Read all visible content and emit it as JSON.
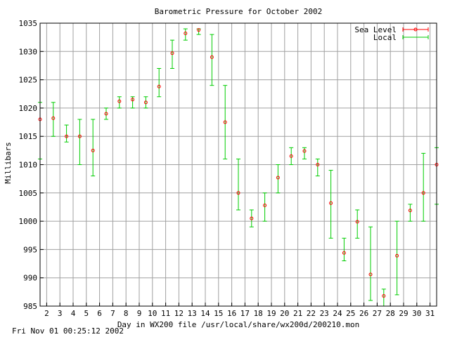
{
  "timestamp": "Fri Nov 01 00:25:12 2002",
  "chart_data": {
    "type": "error-bar",
    "title": "Barometric Pressure for October 2002",
    "xlabel": "Day in WX200 file /usr/local/share/wx200d/200210.mon",
    "ylabel": "Millibars",
    "xlim": [
      1.5,
      31.5
    ],
    "ylim": [
      985,
      1035
    ],
    "x_ticks": [
      2,
      3,
      4,
      5,
      6,
      7,
      8,
      9,
      10,
      11,
      12,
      13,
      14,
      15,
      16,
      17,
      18,
      19,
      20,
      21,
      22,
      23,
      24,
      25,
      26,
      27,
      28,
      29,
      30,
      31
    ],
    "y_ticks": [
      985,
      990,
      995,
      1000,
      1005,
      1010,
      1015,
      1020,
      1025,
      1030,
      1035
    ],
    "grid": true,
    "legend_position": "top-right",
    "colors": {
      "sea_level": "#ff0000",
      "local": "#00cc00",
      "grid": "#a0a0a0"
    },
    "series": [
      {
        "name": "Sea Level",
        "points": [
          {
            "x": 1.5,
            "y": 1018
          },
          {
            "x": 2.5,
            "y": 1018.2
          },
          {
            "x": 3.5,
            "y": 1015
          },
          {
            "x": 4.5,
            "y": 1015
          },
          {
            "x": 5.5,
            "y": 1012.5
          },
          {
            "x": 6.5,
            "y": 1019
          },
          {
            "x": 7.5,
            "y": 1021.2
          },
          {
            "x": 8.5,
            "y": 1021.5
          },
          {
            "x": 9.5,
            "y": 1021
          },
          {
            "x": 10.5,
            "y": 1023.8
          },
          {
            "x": 11.5,
            "y": 1029.7
          },
          {
            "x": 12.5,
            "y": 1033.2
          },
          {
            "x": 13.5,
            "y": 1033.8
          },
          {
            "x": 14.5,
            "y": 1029
          },
          {
            "x": 15.5,
            "y": 1017.5
          },
          {
            "x": 16.5,
            "y": 1005
          },
          {
            "x": 17.5,
            "y": 1000.5
          },
          {
            "x": 18.5,
            "y": 1002.8
          },
          {
            "x": 19.5,
            "y": 1007.7
          },
          {
            "x": 20.5,
            "y": 1011.5
          },
          {
            "x": 21.5,
            "y": 1012.4
          },
          {
            "x": 22.5,
            "y": 1010
          },
          {
            "x": 23.5,
            "y": 1003.2
          },
          {
            "x": 24.5,
            "y": 994.4
          },
          {
            "x": 25.5,
            "y": 999.9
          },
          {
            "x": 26.5,
            "y": 990.6
          },
          {
            "x": 27.5,
            "y": 986.8
          },
          {
            "x": 28.5,
            "y": 993.9
          },
          {
            "x": 29.5,
            "y": 1001.9
          },
          {
            "x": 30.5,
            "y": 1005
          },
          {
            "x": 31.5,
            "y": 1010
          }
        ]
      },
      {
        "name": "Local",
        "points": [
          {
            "x": 1.5,
            "low": 1011,
            "high": 1021
          },
          {
            "x": 2.5,
            "low": 1015,
            "high": 1021
          },
          {
            "x": 3.5,
            "low": 1014,
            "high": 1017
          },
          {
            "x": 4.5,
            "low": 1010,
            "high": 1018
          },
          {
            "x": 5.5,
            "low": 1008,
            "high": 1018
          },
          {
            "x": 6.5,
            "low": 1018,
            "high": 1020
          },
          {
            "x": 7.5,
            "low": 1020,
            "high": 1022
          },
          {
            "x": 8.5,
            "low": 1020,
            "high": 1022
          },
          {
            "x": 9.5,
            "low": 1020,
            "high": 1022
          },
          {
            "x": 10.5,
            "low": 1022,
            "high": 1027
          },
          {
            "x": 11.5,
            "low": 1027,
            "high": 1032
          },
          {
            "x": 12.5,
            "low": 1032,
            "high": 1034
          },
          {
            "x": 13.5,
            "low": 1033,
            "high": 1034
          },
          {
            "x": 14.5,
            "low": 1024,
            "high": 1033
          },
          {
            "x": 15.5,
            "low": 1011,
            "high": 1024
          },
          {
            "x": 16.5,
            "low": 1002,
            "high": 1011
          },
          {
            "x": 17.5,
            "low": 999,
            "high": 1002
          },
          {
            "x": 18.5,
            "low": 1000,
            "high": 1005
          },
          {
            "x": 19.5,
            "low": 1005,
            "high": 1010
          },
          {
            "x": 20.5,
            "low": 1010,
            "high": 1013
          },
          {
            "x": 21.5,
            "low": 1011,
            "high": 1013
          },
          {
            "x": 22.5,
            "low": 1008,
            "high": 1011
          },
          {
            "x": 23.5,
            "low": 997,
            "high": 1009
          },
          {
            "x": 24.5,
            "low": 993,
            "high": 997
          },
          {
            "x": 25.5,
            "low": 997,
            "high": 1002
          },
          {
            "x": 26.5,
            "low": 986,
            "high": 999
          },
          {
            "x": 27.5,
            "low": 985,
            "high": 988
          },
          {
            "x": 28.5,
            "low": 987,
            "high": 1000
          },
          {
            "x": 29.5,
            "low": 1000,
            "high": 1003
          },
          {
            "x": 30.5,
            "low": 1000,
            "high": 1012
          },
          {
            "x": 31.5,
            "low": 1003,
            "high": 1013
          }
        ]
      }
    ]
  }
}
